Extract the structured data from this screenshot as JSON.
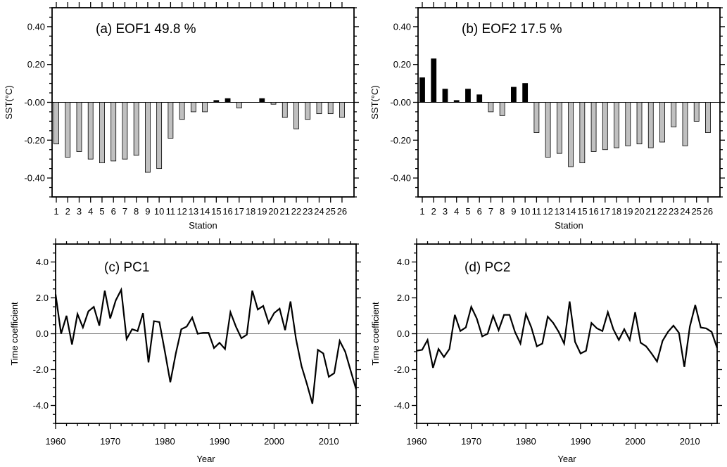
{
  "chart_data": [
    {
      "type": "bar",
      "title": "(a) EOF1 49.8  %",
      "xlabel": "Station",
      "ylabel": "SST(°C)",
      "categories": [
        "1",
        "2",
        "3",
        "4",
        "5",
        "6",
        "7",
        "8",
        "9",
        "10",
        "11",
        "12",
        "13",
        "14",
        "15",
        "16",
        "17",
        "18",
        "19",
        "20",
        "21",
        "22",
        "23",
        "24",
        "25",
        "26"
      ],
      "values": [
        -0.22,
        -0.29,
        -0.26,
        -0.3,
        -0.32,
        -0.31,
        -0.3,
        -0.28,
        -0.37,
        -0.35,
        -0.19,
        -0.09,
        -0.05,
        -0.05,
        0.01,
        0.02,
        -0.03,
        0.0,
        0.02,
        -0.01,
        -0.08,
        -0.14,
        -0.09,
        -0.06,
        -0.06,
        -0.08
      ],
      "ylim": [
        -0.5,
        0.5
      ],
      "yticks": [
        0.4,
        0.2,
        0.0,
        -0.2,
        -0.4
      ],
      "ytick_labels": [
        "0.40",
        "0.20",
        "-0.00",
        "-0.20",
        "-0.40"
      ],
      "positive_color": "#000000",
      "negative_color": "#c0c0c0",
      "grid": false
    },
    {
      "type": "bar",
      "title": "(b) EOF2 17.5 %",
      "xlabel": "Station",
      "ylabel": "SST(°C)",
      "categories": [
        "1",
        "2",
        "3",
        "4",
        "5",
        "6",
        "7",
        "8",
        "9",
        "10",
        "11",
        "12",
        "13",
        "14",
        "15",
        "16",
        "17",
        "18",
        "19",
        "20",
        "21",
        "22",
        "23",
        "24",
        "25",
        "26"
      ],
      "values": [
        0.13,
        0.23,
        0.07,
        0.01,
        0.07,
        0.04,
        -0.05,
        -0.07,
        0.08,
        0.1,
        -0.16,
        -0.29,
        -0.27,
        -0.34,
        -0.32,
        -0.26,
        -0.25,
        -0.24,
        -0.23,
        -0.22,
        -0.24,
        -0.21,
        -0.13,
        -0.23,
        -0.1,
        -0.16
      ],
      "ylim": [
        -0.5,
        0.5
      ],
      "yticks": [
        0.4,
        0.2,
        0.0,
        -0.2,
        -0.4
      ],
      "ytick_labels": [
        "0.40",
        "0.20",
        "-0.00",
        "-0.20",
        "-0.40"
      ],
      "positive_color": "#000000",
      "negative_color": "#c0c0c0",
      "grid": false
    },
    {
      "type": "line",
      "title": "(c) PC1",
      "xlabel": "Year",
      "ylabel": "Time coefficient",
      "x_start": 1960,
      "values": [
        2.2,
        0.0,
        1.0,
        -0.6,
        1.1,
        0.35,
        1.25,
        1.5,
        0.45,
        2.4,
        0.85,
        1.85,
        2.45,
        -0.3,
        0.25,
        0.15,
        1.15,
        -1.6,
        0.7,
        0.65,
        -1.0,
        -2.7,
        -1.1,
        0.25,
        0.4,
        0.9,
        0.0,
        0.05,
        0.05,
        -0.8,
        -0.5,
        -0.85,
        1.2,
        0.4,
        -0.25,
        -0.05,
        2.4,
        1.35,
        1.55,
        0.6,
        1.15,
        1.4,
        0.2,
        1.8,
        -0.3,
        -1.8,
        -2.8,
        -3.9,
        -0.9,
        -1.1,
        -2.4,
        -2.2,
        -0.4,
        -1.0,
        -2.05,
        -3.1
      ],
      "xlim": [
        1960,
        2015
      ],
      "ylim": [
        -5,
        5
      ],
      "xticks": [
        1960,
        1970,
        1980,
        1990,
        2000,
        2010
      ],
      "xtick_labels": [
        "1960",
        "1970",
        "1980",
        "1990",
        "2000",
        "2010"
      ],
      "yticks": [
        4,
        2,
        0,
        -2,
        -4
      ],
      "ytick_labels": [
        "4.0",
        "2.0",
        "0.0",
        "-2.0",
        "-4.0"
      ],
      "grid": false
    },
    {
      "type": "line",
      "title": "(d) PC2",
      "xlabel": "Year",
      "ylabel": "Time coefficient",
      "x_start": 1960,
      "values": [
        -0.95,
        -0.9,
        -0.35,
        -1.9,
        -0.85,
        -1.3,
        -0.85,
        1.05,
        0.15,
        0.35,
        1.5,
        0.85,
        -0.15,
        0.0,
        1.0,
        0.2,
        1.05,
        1.05,
        0.1,
        -0.55,
        1.1,
        0.35,
        -0.7,
        -0.55,
        0.95,
        0.6,
        0.1,
        -0.55,
        1.8,
        -0.45,
        -1.1,
        -0.95,
        0.6,
        0.3,
        0.15,
        1.2,
        0.25,
        -0.35,
        0.25,
        -0.35,
        1.2,
        -0.5,
        -0.7,
        -1.1,
        -1.55,
        -0.4,
        0.1,
        0.45,
        0.05,
        -1.85,
        0.4,
        1.6,
        0.35,
        0.3,
        0.1,
        -0.8
      ],
      "xlim": [
        1960,
        2015
      ],
      "ylim": [
        -5,
        5
      ],
      "xticks": [
        1960,
        1970,
        1980,
        1990,
        2000,
        2010
      ],
      "xtick_labels": [
        "1960",
        "1970",
        "1980",
        "1990",
        "2000",
        "2010"
      ],
      "yticks": [
        4,
        2,
        0,
        -2,
        -4
      ],
      "ytick_labels": [
        "4.0",
        "2.0",
        "0.0",
        "-2.0",
        "-4.0"
      ],
      "grid": false
    }
  ]
}
